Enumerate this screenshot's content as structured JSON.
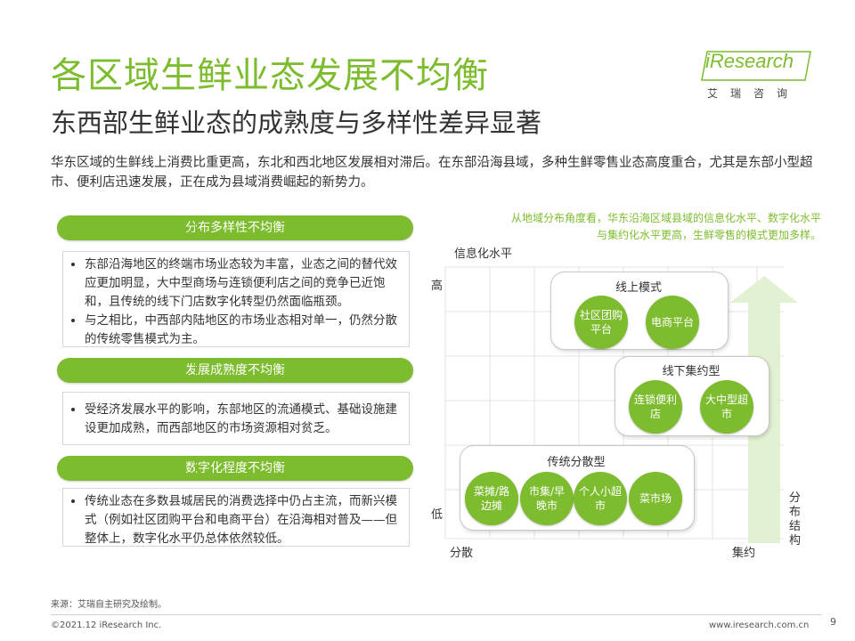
{
  "header": {
    "title": "各区域生鲜业态发展不均衡",
    "subtitle": "东西部生鲜业态的成熟度与多样性差异显著",
    "logo_text": "iResearch",
    "logo_cn": "艾瑞咨询"
  },
  "intro": "华东区域的生鲜线上消费比重更高，东北和西北地区发展相对滞后。在东部沿海县域，多种生鲜零售业态高度重合，尤其是东部小型超市、便利店迅速发展，正在成为县域消费崛起的新势力。",
  "sections": [
    {
      "tag": "分布多样性不均衡",
      "bullets": [
        "东部沿海地区的终端市场业态较为丰富，业态之间的替代效应更加明显，大中型商场与连锁便利店之间的竞争已近饱和，且传统的线下门店数字化转型仍然面临瓶颈。",
        "与之相比，中西部内陆地区的市场业态相对单一，仍然分散的传统零售模式为主。"
      ]
    },
    {
      "tag": "发展成熟度不均衡",
      "bullets": [
        "受经济发展水平的影响，东部地区的流通模式、基础设施建设更加成熟，而西部地区的市场资源相对贫乏。"
      ]
    },
    {
      "tag": "数字化程度不均衡",
      "bullets": [
        "传统业态在多数县城居民的消费选择中仍占主流，而新兴模式（例如社区团购平台和电商平台）在沿海相对普及——但整体上，数字化水平仍总体依然较低。"
      ]
    }
  ],
  "chart": {
    "note": "从地域分布角度看，华东沿海区域县域的信息化水平、数字化水平与集约化水平更高，生鲜零售的模式更加多样。",
    "y_axis_title": "信息化水平",
    "y_high": "高",
    "y_low": "低",
    "x_left": "分散",
    "x_right": "集约",
    "arrow_label": "分布结构",
    "groups": [
      {
        "title": "线上模式",
        "items": [
          "社区团购平台",
          "电商平台"
        ]
      },
      {
        "title": "线下集约型",
        "items": [
          "连锁便利店",
          "大中型超市"
        ]
      },
      {
        "title": "传统分散型",
        "items": [
          "菜摊/路边摊",
          "市集/早晚市",
          "个人小超市",
          "菜市场"
        ]
      }
    ],
    "colors": {
      "accent": "#7dbc2e",
      "arrow": "#dff0cc"
    }
  },
  "footer": {
    "source": "来源：艾瑞自主研究及绘制。",
    "copyright": "©2021.12 iResearch Inc.",
    "website": "www.iresearch.com.cn",
    "page": "9"
  }
}
